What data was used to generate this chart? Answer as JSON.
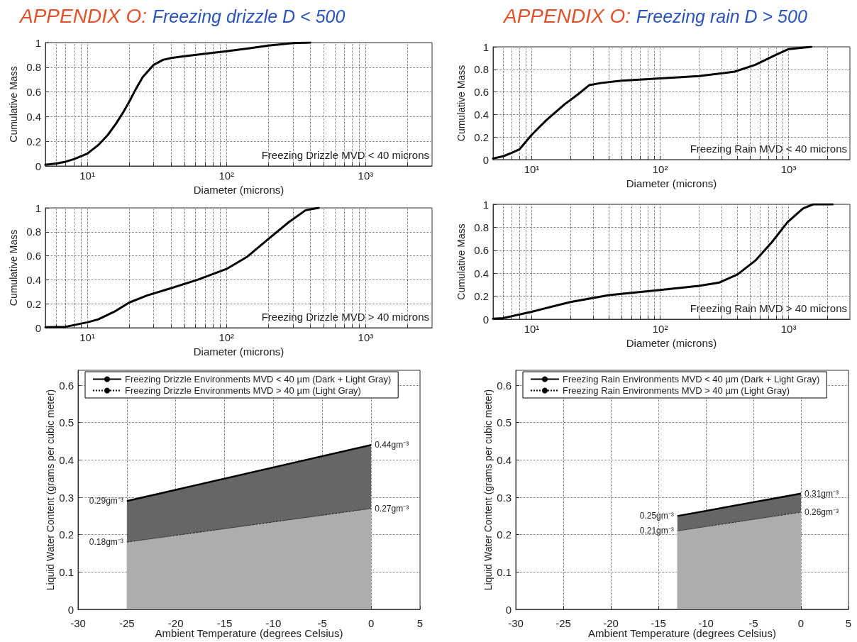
{
  "chart_data": [
    {
      "type": "line",
      "title": "APPENDIX O:",
      "subtitle": "Freezing drizzle D < 500",
      "xlabel": "Diameter (microns)",
      "ylabel": "Cumulative Mass",
      "log": "x",
      "grid": true,
      "marker": "none",
      "line_style": "solid",
      "annotations": [
        "Freezing Drizzle MVD < 40 microns"
      ],
      "xlim": [
        5,
        3000
      ],
      "xticks": [
        {
          "value": 6,
          "label": null
        },
        {
          "value": 7,
          "label": null
        },
        {
          "value": 8,
          "label": null
        },
        {
          "value": 9,
          "label": null
        },
        {
          "value": 10,
          "label": "10¹"
        },
        {
          "value": 20,
          "label": null
        },
        {
          "value": 30,
          "label": null
        },
        {
          "value": 40,
          "label": null
        },
        {
          "value": 50,
          "label": null
        },
        {
          "value": 60,
          "label": null
        },
        {
          "value": 70,
          "label": null
        },
        {
          "value": 80,
          "label": null
        },
        {
          "value": 90,
          "label": null
        },
        {
          "value": 100,
          "label": "10²"
        },
        {
          "value": 200,
          "label": null
        },
        {
          "value": 300,
          "label": null
        },
        {
          "value": 400,
          "label": null
        },
        {
          "value": 500,
          "label": null
        },
        {
          "value": 600,
          "label": null
        },
        {
          "value": 700,
          "label": null
        },
        {
          "value": 800,
          "label": null
        },
        {
          "value": 900,
          "label": null
        },
        {
          "value": 1000,
          "label": "10³"
        },
        {
          "value": 2000,
          "label": null
        }
      ],
      "ylim": [
        0,
        1
      ],
      "yticks": [
        0,
        0.2,
        0.4,
        0.6,
        0.8,
        1
      ],
      "series": [
        {
          "color": "#000000",
          "x": [
            5,
            6,
            7,
            8,
            10,
            12,
            14,
            16,
            18,
            20,
            22,
            25,
            30,
            35,
            40,
            50,
            70,
            100,
            150,
            200,
            300,
            400
          ],
          "values": [
            0.01,
            0.02,
            0.035,
            0.055,
            0.1,
            0.17,
            0.25,
            0.34,
            0.43,
            0.52,
            0.61,
            0.72,
            0.82,
            0.86,
            0.875,
            0.89,
            0.91,
            0.93,
            0.955,
            0.975,
            0.995,
            1.0
          ]
        }
      ]
    },
    {
      "type": "line",
      "xlabel": "Diameter (microns)",
      "ylabel": "Cumulative Mass",
      "log": "x",
      "grid": true,
      "marker": "none",
      "line_style": "solid",
      "annotations": [
        "Freezing Drizzle MVD > 40 microns"
      ],
      "xlim": [
        5,
        3000
      ],
      "xticks": [
        {
          "value": 6,
          "label": null
        },
        {
          "value": 7,
          "label": null
        },
        {
          "value": 8,
          "label": null
        },
        {
          "value": 9,
          "label": null
        },
        {
          "value": 10,
          "label": "10¹"
        },
        {
          "value": 20,
          "label": null
        },
        {
          "value": 30,
          "label": null
        },
        {
          "value": 40,
          "label": null
        },
        {
          "value": 50,
          "label": null
        },
        {
          "value": 60,
          "label": null
        },
        {
          "value": 70,
          "label": null
        },
        {
          "value": 80,
          "label": null
        },
        {
          "value": 90,
          "label": null
        },
        {
          "value": 100,
          "label": "10²"
        },
        {
          "value": 200,
          "label": null
        },
        {
          "value": 300,
          "label": null
        },
        {
          "value": 400,
          "label": null
        },
        {
          "value": 500,
          "label": null
        },
        {
          "value": 600,
          "label": null
        },
        {
          "value": 700,
          "label": null
        },
        {
          "value": 800,
          "label": null
        },
        {
          "value": 900,
          "label": null
        },
        {
          "value": 1000,
          "label": "10³"
        },
        {
          "value": 2000,
          "label": null
        }
      ],
      "ylim": [
        0,
        1
      ],
      "yticks": [
        0,
        0.2,
        0.4,
        0.6,
        0.8,
        1
      ],
      "series": [
        {
          "color": "#000000",
          "x": [
            5,
            7,
            10,
            12,
            16,
            20,
            27,
            40,
            62,
            100,
            140,
            200,
            280,
            370,
            460
          ],
          "values": [
            0.005,
            0.008,
            0.045,
            0.07,
            0.14,
            0.21,
            0.27,
            0.33,
            0.4,
            0.49,
            0.59,
            0.74,
            0.88,
            0.98,
            1.0
          ]
        }
      ]
    },
    {
      "type": "line",
      "title": "APPENDIX O:",
      "subtitle": "Freezing rain D > 500",
      "xlabel": "Diameter (microns)",
      "ylabel": "Cumulative Mass",
      "log": "x",
      "grid": true,
      "marker": "none",
      "line_style": "solid",
      "annotations": [
        "Freezing Rain MVD < 40 microns"
      ],
      "xlim": [
        5,
        3000
      ],
      "xticks": [
        {
          "value": 6,
          "label": null
        },
        {
          "value": 7,
          "label": null
        },
        {
          "value": 8,
          "label": null
        },
        {
          "value": 9,
          "label": null
        },
        {
          "value": 10,
          "label": "10¹"
        },
        {
          "value": 20,
          "label": null
        },
        {
          "value": 30,
          "label": null
        },
        {
          "value": 40,
          "label": null
        },
        {
          "value": 50,
          "label": null
        },
        {
          "value": 60,
          "label": null
        },
        {
          "value": 70,
          "label": null
        },
        {
          "value": 80,
          "label": null
        },
        {
          "value": 90,
          "label": null
        },
        {
          "value": 100,
          "label": "10²"
        },
        {
          "value": 200,
          "label": null
        },
        {
          "value": 300,
          "label": null
        },
        {
          "value": 400,
          "label": null
        },
        {
          "value": 500,
          "label": null
        },
        {
          "value": 600,
          "label": null
        },
        {
          "value": 700,
          "label": null
        },
        {
          "value": 800,
          "label": null
        },
        {
          "value": 900,
          "label": null
        },
        {
          "value": 1000,
          "label": "10³"
        },
        {
          "value": 2000,
          "label": null
        }
      ],
      "ylim": [
        0,
        1
      ],
      "yticks": [
        0,
        0.2,
        0.4,
        0.6,
        0.8,
        1
      ],
      "series": [
        {
          "color": "#000000",
          "x": [
            5,
            6,
            7,
            8,
            10,
            13,
            18,
            23,
            28,
            35,
            50,
            100,
            200,
            380,
            550,
            800,
            1000,
            1500
          ],
          "values": [
            0.01,
            0.03,
            0.06,
            0.09,
            0.22,
            0.35,
            0.49,
            0.58,
            0.66,
            0.68,
            0.7,
            0.72,
            0.74,
            0.78,
            0.84,
            0.93,
            0.98,
            1.0
          ]
        }
      ]
    },
    {
      "type": "line",
      "xlabel": "Diameter (microns)",
      "ylabel": "Cumulative Mass",
      "log": "x",
      "grid": true,
      "marker": "none",
      "line_style": "solid",
      "annotations": [
        "Freezing Rain MVD > 40 microns"
      ],
      "xlim": [
        5,
        3000
      ],
      "xticks": [
        {
          "value": 6,
          "label": null
        },
        {
          "value": 7,
          "label": null
        },
        {
          "value": 8,
          "label": null
        },
        {
          "value": 9,
          "label": null
        },
        {
          "value": 10,
          "label": "10¹"
        },
        {
          "value": 20,
          "label": null
        },
        {
          "value": 30,
          "label": null
        },
        {
          "value": 40,
          "label": null
        },
        {
          "value": 50,
          "label": null
        },
        {
          "value": 60,
          "label": null
        },
        {
          "value": 70,
          "label": null
        },
        {
          "value": 80,
          "label": null
        },
        {
          "value": 90,
          "label": null
        },
        {
          "value": 100,
          "label": "10²"
        },
        {
          "value": 200,
          "label": null
        },
        {
          "value": 300,
          "label": null
        },
        {
          "value": 400,
          "label": null
        },
        {
          "value": 500,
          "label": null
        },
        {
          "value": 600,
          "label": null
        },
        {
          "value": 700,
          "label": null
        },
        {
          "value": 800,
          "label": null
        },
        {
          "value": 900,
          "label": null
        },
        {
          "value": 1000,
          "label": "10³"
        },
        {
          "value": 2000,
          "label": null
        }
      ],
      "ylim": [
        0,
        1
      ],
      "yticks": [
        0,
        0.2,
        0.4,
        0.6,
        0.8,
        1
      ],
      "series": [
        {
          "color": "#000000",
          "x": [
            5,
            6,
            10,
            20,
            40,
            100,
            200,
            290,
            400,
            550,
            740,
            980,
            1300,
            1560,
            2200
          ],
          "values": [
            0.005,
            0.01,
            0.065,
            0.15,
            0.21,
            0.255,
            0.29,
            0.32,
            0.39,
            0.51,
            0.67,
            0.845,
            0.965,
            1.0,
            1.0
          ]
        }
      ]
    },
    {
      "type": "area",
      "xlabel": "Ambient Temperature (degrees Celsius)",
      "ylabel": "Liquid Water Content (grams per cubic meter)",
      "grid": true,
      "legend": "top",
      "marker": "none",
      "xlim": [
        -30,
        5
      ],
      "xticks": [
        -30,
        -25,
        -20,
        -15,
        -10,
        -5,
        0,
        5
      ],
      "ylim": [
        0,
        0.64
      ],
      "yticks": [
        0,
        0.1,
        0.2,
        0.3,
        0.4,
        0.5,
        0.6
      ],
      "series": [
        {
          "name": "Freezing Drizzle Environments MVD < 40 µm (Dark + Light Gray)",
          "color": "#666666",
          "line_style": "solid",
          "x": [
            -25,
            0
          ],
          "values": [
            0.29,
            0.44
          ],
          "value_labels": [
            "0.29gm⁻³",
            "0.44gm⁻³"
          ]
        },
        {
          "name": "Freezing Drizzle Environments MVD > 40 µm (Light Gray)",
          "color": "#adadad",
          "line_style": "dotted",
          "x": [
            -25,
            0
          ],
          "values": [
            0.18,
            0.27
          ],
          "value_labels": [
            "0.18gm⁻³",
            "0.27gm⁻³"
          ]
        }
      ]
    },
    {
      "type": "area",
      "xlabel": "Ambient Temperature (degrees Celsius)",
      "ylabel": "Liquid Water Content (grams per cubic meter)",
      "grid": true,
      "legend": "top",
      "marker": "none",
      "xlim": [
        -30,
        5
      ],
      "xticks": [
        -30,
        -25,
        -20,
        -15,
        -10,
        -5,
        0,
        5
      ],
      "ylim": [
        0,
        0.64
      ],
      "yticks": [
        0,
        0.1,
        0.2,
        0.3,
        0.4,
        0.5,
        0.6
      ],
      "series": [
        {
          "name": "Freezing Rain Environments MVD < 40 µm (Dark + Light Gray)",
          "color": "#666666",
          "line_style": "solid",
          "x": [
            -13,
            0
          ],
          "values": [
            0.25,
            0.31
          ],
          "value_labels": [
            "0.25gm⁻³",
            "0.31gm⁻³"
          ]
        },
        {
          "name": "Freezing Rain Environments MVD > 40 µm (Light Gray)",
          "color": "#adadad",
          "line_style": "dotted",
          "x": [
            -13,
            0
          ],
          "values": [
            0.21,
            0.26
          ],
          "value_labels": [
            "0.21gm⁻³",
            "0.26gm⁻³"
          ]
        }
      ]
    }
  ]
}
